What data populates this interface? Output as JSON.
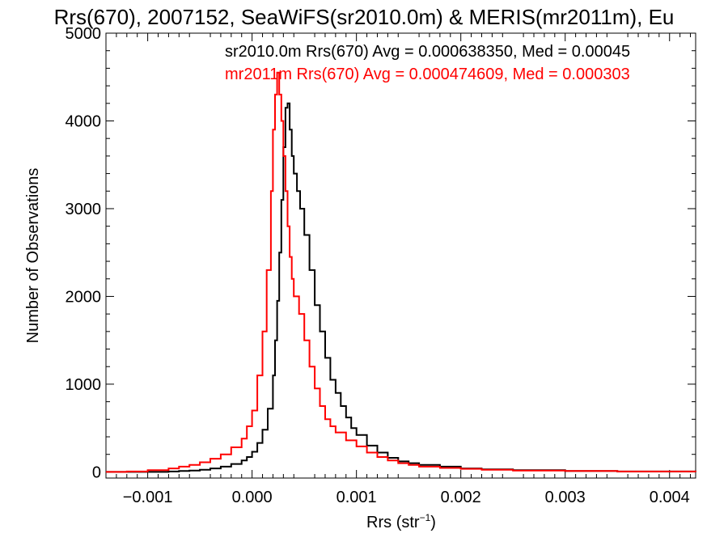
{
  "chart_data": {
    "type": "line",
    "title": "Rrs(670), 2007152, SeaWiFS(sr2010.0m) & MERIS(mr2011m), Eu",
    "xlabel": "Rrs (str",
    "xlabel_sup": "−1",
    "xlabel_close": ")",
    "ylabel": "Number of Observations",
    "xlim": [
      -0.0014,
      0.00425
    ],
    "ylim": [
      -70,
      5000
    ],
    "xticks": [
      -0.001,
      0.0,
      0.001,
      0.002,
      0.003,
      0.004
    ],
    "xtick_labels": [
      "−0.001",
      "0.000",
      "0.001",
      "0.002",
      "0.003",
      "0.004"
    ],
    "yticks": [
      0,
      1000,
      2000,
      3000,
      4000,
      5000
    ],
    "ytick_labels": [
      "0",
      "1000",
      "2000",
      "3000",
      "4000",
      "5000"
    ],
    "grid": false,
    "legend_position": "top-right",
    "series": [
      {
        "name": "sr2010.0m Rrs(670) Avg = 0.000638350, Med = 0.00045",
        "color": "#000000",
        "x": [
          -0.0014,
          -0.0012,
          -0.001,
          -0.0008,
          -0.0007,
          -0.0006,
          -0.0005,
          -0.0004,
          -0.0003,
          -0.0002,
          -0.0001,
          -5e-05,
          0.0,
          5e-05,
          0.0001,
          0.00015,
          0.0002,
          0.00022,
          0.00024,
          0.00026,
          0.00028,
          0.0003,
          0.00032,
          0.00034,
          0.00036,
          0.00038,
          0.0004,
          0.00043,
          0.00046,
          0.0005,
          0.00055,
          0.0006,
          0.00065,
          0.0007,
          0.00075,
          0.0008,
          0.00085,
          0.0009,
          0.00095,
          0.001,
          0.0011,
          0.0012,
          0.0013,
          0.0014,
          0.0015,
          0.0016,
          0.0018,
          0.002,
          0.0022,
          0.0025,
          0.003,
          0.0035,
          0.00425
        ],
        "y": [
          0,
          0,
          0,
          5,
          10,
          15,
          25,
          40,
          60,
          90,
          130,
          170,
          230,
          330,
          480,
          720,
          1100,
          1500,
          1950,
          2500,
          3100,
          3700,
          4150,
          4200,
          3900,
          3600,
          3400,
          3200,
          3000,
          2700,
          2300,
          1900,
          1600,
          1300,
          1050,
          900,
          750,
          620,
          500,
          420,
          300,
          220,
          160,
          120,
          100,
          80,
          60,
          40,
          30,
          20,
          10,
          5,
          0
        ]
      },
      {
        "name": "mr2011m Rrs(670) Avg = 0.000474609, Med = 0.000303",
        "color": "#ff0000",
        "x": [
          -0.0014,
          -0.0012,
          -0.001,
          -0.0008,
          -0.0007,
          -0.0006,
          -0.0005,
          -0.0004,
          -0.0003,
          -0.0002,
          -0.0001,
          -5e-05,
          0.0,
          5e-05,
          0.0001,
          0.00014,
          0.00018,
          0.0002,
          0.00022,
          0.00024,
          0.00026,
          0.00028,
          0.0003,
          0.00032,
          0.00034,
          0.00036,
          0.00038,
          0.0004,
          0.00045,
          0.0005,
          0.00055,
          0.0006,
          0.00065,
          0.0007,
          0.00075,
          0.0008,
          0.0009,
          0.001,
          0.0011,
          0.0012,
          0.0013,
          0.0014,
          0.0015,
          0.0016,
          0.0018,
          0.002,
          0.0022,
          0.0025,
          0.003,
          0.0035,
          0.00425
        ],
        "y": [
          0,
          5,
          20,
          40,
          60,
          80,
          110,
          150,
          200,
          280,
          380,
          520,
          700,
          1100,
          1600,
          2300,
          3200,
          3900,
          4300,
          4550,
          4300,
          4000,
          3600,
          3200,
          2800,
          2450,
          2200,
          2000,
          1800,
          1500,
          1200,
          950,
          750,
          600,
          520,
          450,
          360,
          290,
          220,
          170,
          130,
          100,
          80,
          60,
          45,
          35,
          25,
          15,
          10,
          5,
          0
        ]
      }
    ]
  }
}
